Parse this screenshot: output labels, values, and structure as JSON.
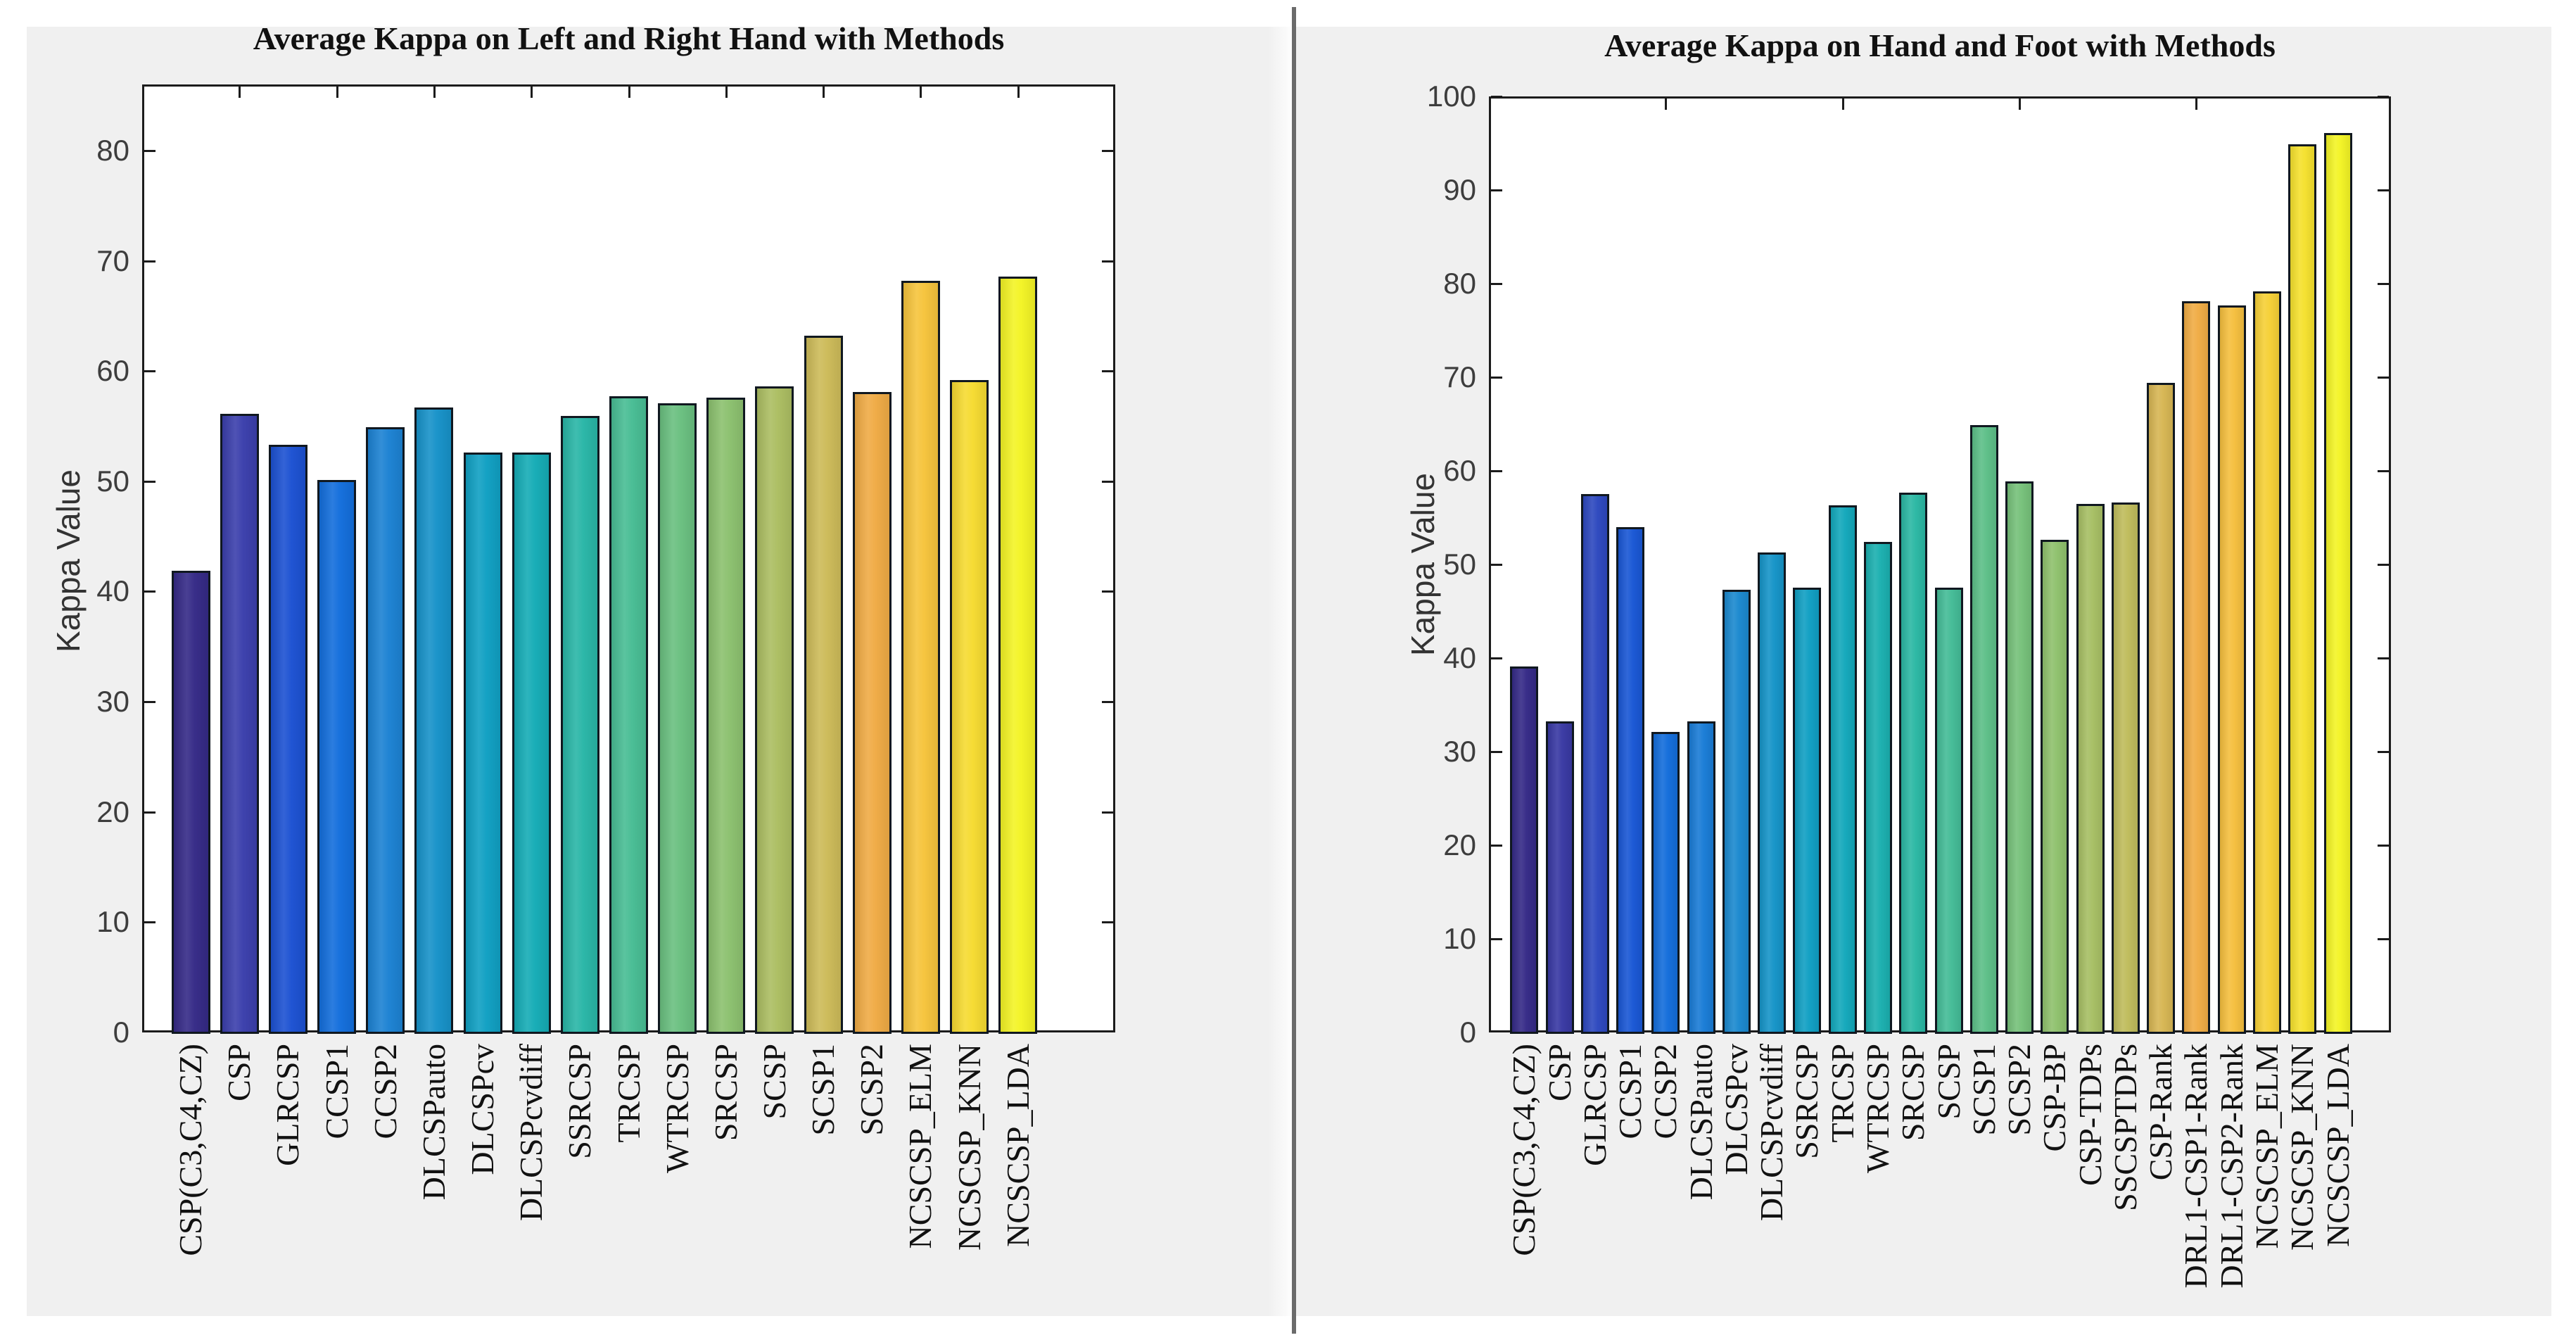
{
  "window": {
    "background": "#ffffff",
    "panel_color": "#f0f0f0",
    "divider_color": "#6b6b6b"
  },
  "style": {
    "bar_border_color": "#101820",
    "axis_color": "#1c1c1c",
    "tick_label_color": "#3d3d3d",
    "title_color": "#111111",
    "colormap_name": "parula",
    "colormap": [
      [
        0.0,
        "#352a87"
      ],
      [
        0.06,
        "#3b3fad"
      ],
      [
        0.12,
        "#1b52d4"
      ],
      [
        0.18,
        "#1270dc"
      ],
      [
        0.24,
        "#1d84d2"
      ],
      [
        0.3,
        "#1693c8"
      ],
      [
        0.36,
        "#0fa2c2"
      ],
      [
        0.42,
        "#16aeb4"
      ],
      [
        0.48,
        "#2cb8a4"
      ],
      [
        0.54,
        "#4ebe91"
      ],
      [
        0.6,
        "#71c17c"
      ],
      [
        0.66,
        "#94c16b"
      ],
      [
        0.72,
        "#b4bd5f"
      ],
      [
        0.765,
        "#cdbb59"
      ],
      [
        0.824,
        "#f0ab45"
      ],
      [
        0.88,
        "#f6c33c"
      ],
      [
        0.94,
        "#f6da31"
      ],
      [
        1.0,
        "#f3f425"
      ]
    ]
  },
  "chart_data": [
    {
      "type": "bar",
      "title": "Average Kappa on Left and Right Hand with Methods",
      "xlabel": "",
      "ylabel": "Kappa Value",
      "ylim": [
        0,
        86
      ],
      "yticks": [
        0,
        10,
        20,
        30,
        40,
        50,
        60,
        70,
        80
      ],
      "grid": false,
      "legend": "none",
      "categories": [
        "CSP(C3,C4,CZ)",
        "CSP",
        "GLRCSP",
        "CCSP1",
        "CCSP2",
        "DLCSPauto",
        "DLCSPcv",
        "DLCSPcvdiff",
        "SSRCSP",
        "TRCSP",
        "WTRCSP",
        "SRCSP",
        "SCSP",
        "SCSP1",
        "SCSP2",
        "NCSCSP_ELM",
        "NCSCSP_KNN",
        "NCSCSP_LDA"
      ],
      "values": [
        41.9,
        56.1,
        53.3,
        50.1,
        54.9,
        56.7,
        52.6,
        52.6,
        55.9,
        57.7,
        57.1,
        57.6,
        58.6,
        63.2,
        58.1,
        68.2,
        59.2,
        68.6
      ]
    },
    {
      "type": "bar",
      "title": "Average Kappa on Hand and Foot with Methods",
      "xlabel": "",
      "ylabel": "Kappa Value",
      "ylim": [
        0,
        100
      ],
      "yticks": [
        0,
        10,
        20,
        30,
        40,
        50,
        60,
        70,
        80,
        90,
        100
      ],
      "grid": false,
      "legend": "none",
      "categories": [
        "CSP(C3,C4,CZ)",
        "CSP",
        "GLRCSP",
        "CCSP1",
        "CCSP2",
        "DLCSPauto",
        "DLCSPcv",
        "DLCSPcvdiff",
        "SSRCSP",
        "TRCSP",
        "WTRCSP",
        "SRCSP",
        "SCSP",
        "SCSP1",
        "SCSP2",
        "CSP-BP",
        "CSP-TDPs",
        "SSCSPTDPs",
        "CSP-Rank",
        "DRL1-CSP1-Rank",
        "DRL1-CSP2-Rank",
        "NCSCSP_ELM",
        "NCSCSP_KNN",
        "NCSCSP_LDA"
      ],
      "values": [
        39.1,
        33.2,
        57.5,
        54.0,
        32.1,
        33.2,
        47.3,
        51.3,
        47.5,
        56.3,
        52.4,
        57.7,
        47.5,
        64.9,
        58.9,
        52.6,
        56.5,
        56.6,
        69.4,
        78.1,
        77.7,
        79.2,
        94.9,
        96.1
      ]
    }
  ]
}
